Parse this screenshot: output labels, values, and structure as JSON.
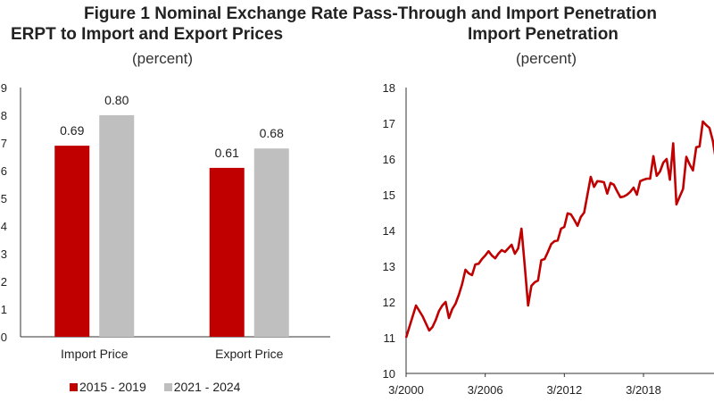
{
  "figure_title": "Figure 1 Nominal Exchange Rate Pass-Through and Import Penetration",
  "chart_data": [
    {
      "type": "bar",
      "title": "ERPT to Import and Export Prices",
      "subtitle": "(percent)",
      "xlabel": "",
      "ylabel": "",
      "categories": [
        "Import Price",
        "Export Price"
      ],
      "series": [
        {
          "name": "2015 - 2019",
          "color": "#c00000",
          "values": [
            0.69,
            0.61
          ]
        },
        {
          "name": "2021 - 2024",
          "color": "#bfbfbf",
          "values": [
            0.8,
            0.68
          ]
        }
      ],
      "data_labels": [
        [
          "0.69",
          "0.61"
        ],
        [
          "0.80",
          "0.68"
        ]
      ],
      "ylim": [
        0,
        0.9
      ],
      "yticks": [
        0,
        0.1,
        0.2,
        0.3,
        0.4,
        0.5,
        0.6,
        0.7,
        0.8,
        0.9
      ],
      "ytick_labels_visible": [
        "0",
        "1",
        "2",
        "3",
        "4",
        "5",
        "6",
        "7",
        "8",
        "9"
      ],
      "grid": false,
      "legend": "bottom"
    },
    {
      "type": "line",
      "title": "Import Penetration",
      "subtitle": "(percent)",
      "xlabel": "",
      "ylabel": "",
      "x_start": "2000Q1",
      "x_frequency": "quarterly",
      "xticks": [
        "3/2000",
        "3/2006",
        "3/2012",
        "3/2018"
      ],
      "ylim": [
        10,
        18
      ],
      "yticks": [
        10,
        11,
        12,
        13,
        14,
        15,
        16,
        17,
        18
      ],
      "grid": false,
      "series": [
        {
          "name": "Import Penetration",
          "color": "#c00000",
          "values": [
            11.0,
            11.3,
            11.6,
            11.9,
            11.75,
            11.6,
            11.4,
            11.2,
            11.3,
            11.5,
            11.75,
            11.9,
            12.0,
            11.55,
            11.8,
            11.95,
            12.2,
            12.5,
            12.9,
            12.8,
            12.75,
            13.05,
            13.07,
            13.2,
            13.3,
            13.42,
            13.3,
            13.22,
            13.35,
            13.45,
            13.4,
            13.5,
            13.6,
            13.35,
            13.5,
            14.05,
            13.0,
            11.9,
            12.45,
            12.55,
            12.6,
            13.17,
            13.2,
            13.4,
            13.62,
            13.7,
            13.72,
            14.05,
            14.1,
            14.48,
            14.45,
            14.3,
            14.13,
            14.38,
            14.5,
            15.0,
            15.5,
            15.22,
            15.38,
            15.37,
            15.35,
            15.03,
            15.33,
            15.28,
            15.1,
            14.93,
            14.95,
            15.0,
            15.08,
            15.2,
            15.0,
            15.38,
            15.42,
            15.45,
            15.45,
            16.08,
            15.53,
            15.65,
            15.9,
            16.0,
            15.42,
            16.44,
            14.73,
            14.95,
            15.16,
            16.06,
            15.85,
            15.68,
            16.33,
            16.35,
            17.05,
            16.95,
            16.87,
            16.52,
            15.95
          ]
        }
      ]
    }
  ]
}
